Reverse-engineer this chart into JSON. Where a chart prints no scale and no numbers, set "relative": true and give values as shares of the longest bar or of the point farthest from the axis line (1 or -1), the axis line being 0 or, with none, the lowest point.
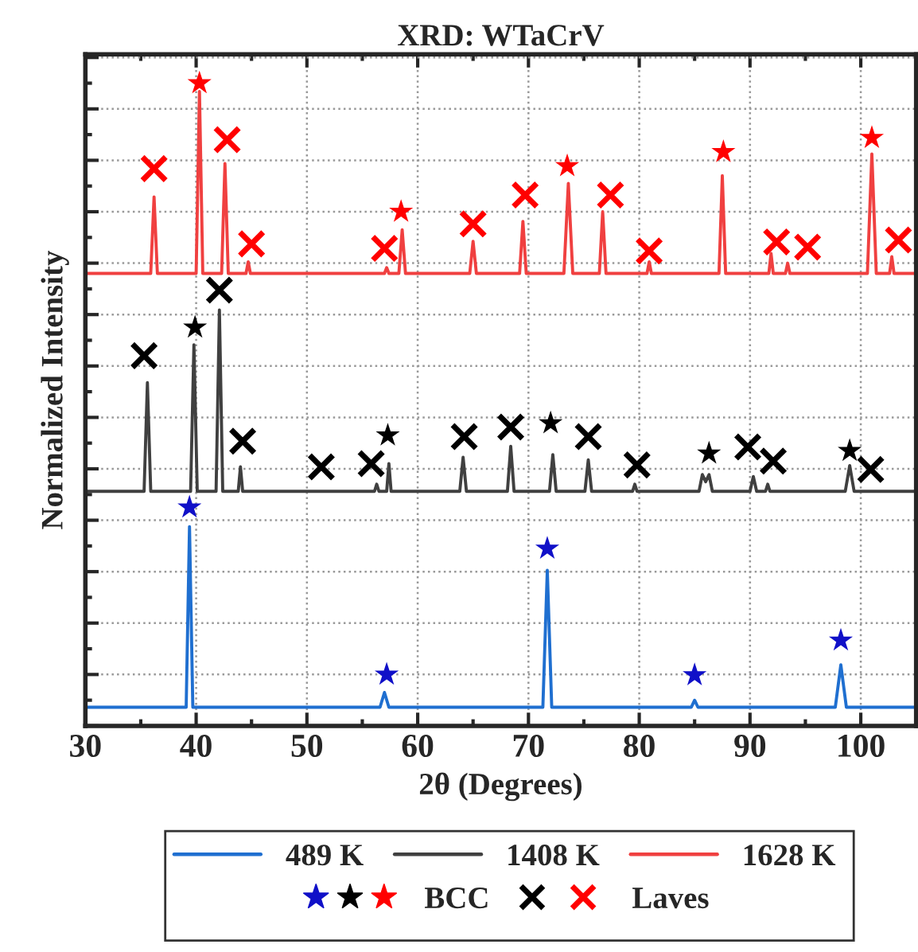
{
  "chart_data": {
    "type": "line",
    "title": "XRD: WTaCrV",
    "xlabel": "2θ (Degrees)",
    "ylabel": "Normalized Intensity",
    "relative": true,
    "xlim": [
      30,
      105
    ],
    "xticks": [
      30,
      40,
      50,
      60,
      70,
      80,
      90,
      100
    ],
    "tick_labels": "x",
    "grid": true,
    "legend": "bottom",
    "line_style": "solid",
    "series": [
      {
        "name": "489 K",
        "color": "#1f6fd0",
        "x": [
          30,
          39.1,
          39.4,
          39.7,
          56.6,
          57.0,
          57.4,
          71.3,
          71.7,
          72.1,
          84.7,
          85.0,
          85.3,
          97.7,
          98.2,
          98.7,
          105
        ],
        "values": [
          0.029,
          0.029,
          0.31,
          0.029,
          0.029,
          0.052,
          0.029,
          0.029,
          0.242,
          0.029,
          0.029,
          0.04,
          0.029,
          0.029,
          0.095,
          0.029,
          0.029
        ]
      },
      {
        "name": "1408 K",
        "color": "#404040",
        "x": [
          30,
          35.3,
          35.6,
          35.9,
          39.5,
          39.8,
          40.1,
          41.8,
          42.1,
          42.4,
          43.8,
          44.0,
          44.2,
          56.1,
          56.3,
          56.5,
          57.2,
          57.4,
          57.6,
          63.8,
          64.1,
          64.4,
          68.1,
          68.4,
          68.7,
          71.9,
          72.2,
          72.5,
          75.1,
          75.4,
          75.7,
          79.4,
          79.6,
          79.8,
          85.4,
          85.7,
          86.0,
          86.3,
          86.6,
          90.0,
          90.3,
          90.6,
          91.4,
          91.6,
          91.8,
          98.6,
          99.0,
          99.4,
          105
        ],
        "values": [
          0.365,
          0.365,
          0.534,
          0.365,
          0.365,
          0.593,
          0.365,
          0.365,
          0.647,
          0.365,
          0.365,
          0.403,
          0.365,
          0.365,
          0.376,
          0.365,
          0.365,
          0.408,
          0.365,
          0.365,
          0.418,
          0.365,
          0.365,
          0.435,
          0.365,
          0.365,
          0.422,
          0.365,
          0.365,
          0.414,
          0.365,
          0.365,
          0.376,
          0.365,
          0.365,
          0.391,
          0.38,
          0.391,
          0.365,
          0.365,
          0.388,
          0.365,
          0.365,
          0.376,
          0.365,
          0.365,
          0.405,
          0.365,
          0.365
        ]
      },
      {
        "name": "1628 K",
        "color": "#f04040",
        "x": [
          30,
          35.9,
          36.2,
          36.5,
          40.0,
          40.3,
          40.6,
          42.3,
          42.6,
          42.9,
          44.5,
          44.7,
          44.9,
          57.0,
          57.2,
          57.4,
          58.3,
          58.6,
          58.9,
          64.7,
          65.0,
          65.3,
          69.2,
          69.5,
          69.8,
          73.2,
          73.6,
          74.0,
          76.4,
          76.7,
          77.0,
          80.7,
          80.9,
          81.1,
          87.2,
          87.5,
          87.8,
          91.7,
          91.9,
          92.1,
          93.2,
          93.4,
          93.6,
          100.6,
          101.0,
          101.4,
          102.6,
          102.8,
          103.0,
          105
        ],
        "values": [
          0.704,
          0.704,
          0.823,
          0.704,
          0.704,
          0.987,
          0.704,
          0.704,
          0.875,
          0.704,
          0.704,
          0.722,
          0.704,
          0.704,
          0.713,
          0.704,
          0.704,
          0.772,
          0.704,
          0.704,
          0.754,
          0.704,
          0.704,
          0.785,
          0.704,
          0.704,
          0.844,
          0.704,
          0.704,
          0.8,
          0.704,
          0.704,
          0.722,
          0.704,
          0.704,
          0.856,
          0.704,
          0.704,
          0.735,
          0.704,
          0.704,
          0.72,
          0.704,
          0.704,
          0.89,
          0.704,
          0.704,
          0.73,
          0.704,
          0.704
        ]
      },
      {
        "name": "BCC",
        "type": "scatter",
        "marker": "star",
        "x": [
          39.4,
          57.2,
          71.7,
          85.0,
          98.2,
          39.9,
          57.3,
          72.0,
          86.3,
          99.0,
          40.3,
          58.5,
          73.5,
          87.6,
          101.0
        ],
        "values": [
          0.34,
          0.08,
          0.276,
          0.079,
          0.133,
          0.62,
          0.452,
          0.471,
          0.424,
          0.428,
          1.0,
          0.8,
          0.871,
          0.893,
          0.915
        ],
        "colors": [
          "#1010c8",
          "#1010c8",
          "#1010c8",
          "#1010c8",
          "#1010c8",
          "#000000",
          "#000000",
          "#000000",
          "#000000",
          "#000000",
          "#ff0000",
          "#ff0000",
          "#ff0000",
          "#ff0000",
          "#ff0000"
        ]
      },
      {
        "name": "Laves",
        "type": "scatter",
        "marker": "cross",
        "x": [
          35.3,
          42.1,
          44.2,
          51.3,
          55.8,
          64.2,
          68.4,
          75.4,
          79.8,
          89.8,
          92.1,
          100.9,
          36.2,
          42.8,
          45.0,
          57.0,
          65.0,
          69.7,
          77.4,
          80.9,
          92.4,
          95.2,
          103.4
        ],
        "values": [
          0.576,
          0.678,
          0.443,
          0.403,
          0.408,
          0.45,
          0.465,
          0.45,
          0.406,
          0.434,
          0.412,
          0.399,
          0.867,
          0.912,
          0.75,
          0.743,
          0.781,
          0.826,
          0.826,
          0.739,
          0.753,
          0.745,
          0.756
        ],
        "colors": [
          "#000000",
          "#000000",
          "#000000",
          "#000000",
          "#000000",
          "#000000",
          "#000000",
          "#000000",
          "#000000",
          "#000000",
          "#000000",
          "#000000",
          "#ff0000",
          "#ff0000",
          "#ff0000",
          "#ff0000",
          "#ff0000",
          "#ff0000",
          "#ff0000",
          "#ff0000",
          "#ff0000",
          "#ff0000",
          "#ff0000"
        ]
      }
    ]
  }
}
